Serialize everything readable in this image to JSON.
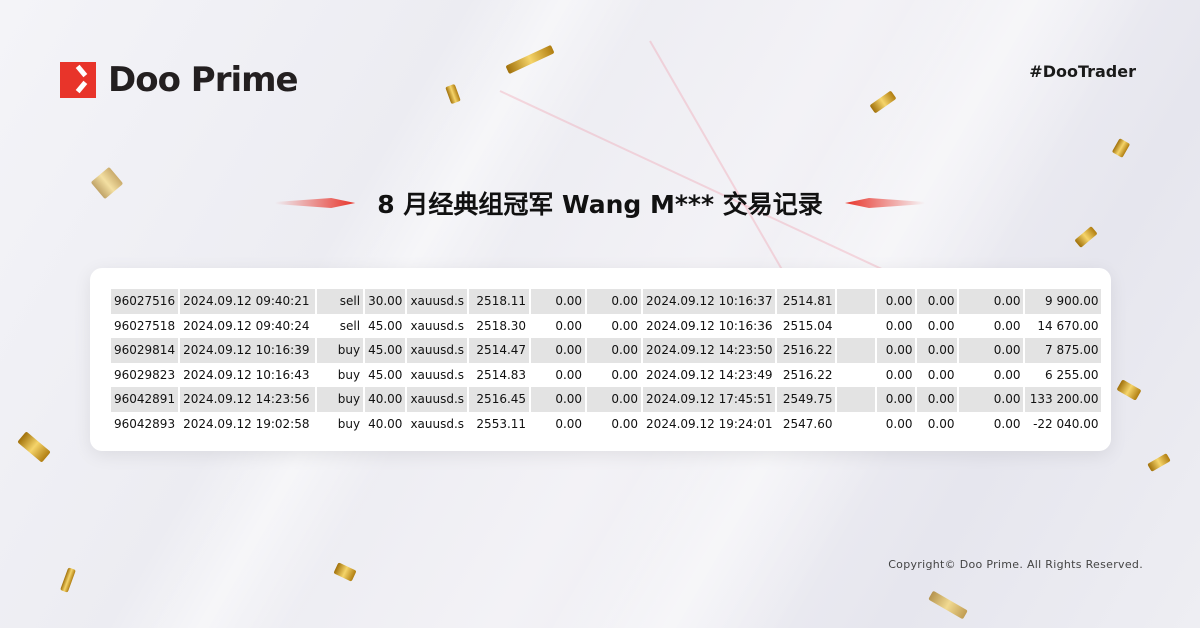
{
  "brand": {
    "name": "Doo Prime",
    "hashtag": "#DooTrader"
  },
  "title": "8 月经典组冠军 Wang M*** 交易记录",
  "trades": [
    [
      "96027516",
      "2024.09.12 09:40:21",
      "sell",
      "30.00",
      "xauusd.s",
      "2518.11",
      "0.00",
      "0.00",
      "2024.09.12 10:16:37",
      "2514.81",
      "",
      "0.00",
      "0.00",
      "0.00",
      "9 900.00"
    ],
    [
      "96027518",
      "2024.09.12 09:40:24",
      "sell",
      "45.00",
      "xauusd.s",
      "2518.30",
      "0.00",
      "0.00",
      "2024.09.12 10:16:36",
      "2515.04",
      "",
      "0.00",
      "0.00",
      "0.00",
      "14 670.00"
    ],
    [
      "96029814",
      "2024.09.12 10:16:39",
      "buy",
      "45.00",
      "xauusd.s",
      "2514.47",
      "0.00",
      "0.00",
      "2024.09.12 14:23:50",
      "2516.22",
      "",
      "0.00",
      "0.00",
      "0.00",
      "7 875.00"
    ],
    [
      "96029823",
      "2024.09.12 10:16:43",
      "buy",
      "45.00",
      "xauusd.s",
      "2514.83",
      "0.00",
      "0.00",
      "2024.09.12 14:23:49",
      "2516.22",
      "",
      "0.00",
      "0.00",
      "0.00",
      "6 255.00"
    ],
    [
      "96042891",
      "2024.09.12 14:23:56",
      "buy",
      "40.00",
      "xauusd.s",
      "2516.45",
      "0.00",
      "0.00",
      "2024.09.12 17:45:51",
      "2549.75",
      "",
      "0.00",
      "0.00",
      "0.00",
      "133 200.00"
    ],
    [
      "96042893",
      "2024.09.12 19:02:58",
      "buy",
      "40.00",
      "xauusd.s",
      "2553.11",
      "0.00",
      "0.00",
      "2024.09.12 19:24:01",
      "2547.60",
      "",
      "0.00",
      "0.00",
      "0.00",
      "-22 040.00"
    ]
  ],
  "footer": "Copyright© Doo Prime. All Rights Reserved.",
  "colors": {
    "brand_red": "#e8342a",
    "row_alt": "#e3e3e3"
  }
}
